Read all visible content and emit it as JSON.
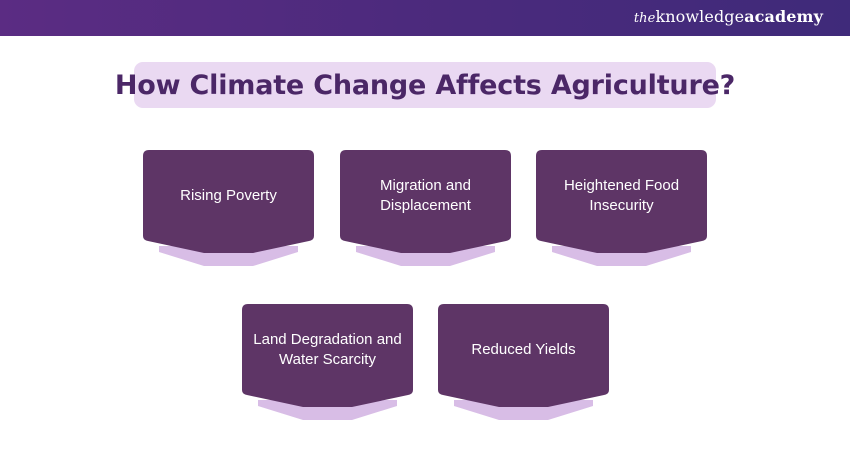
{
  "header": {
    "logo_the": "the",
    "logo_knowledge": "knowledge",
    "logo_academy": "academy"
  },
  "title": "How Climate Change Affects Agriculture?",
  "colors": {
    "header_bg": "#4a2a7c",
    "title_bg": "#ead9f2",
    "title_text": "#4b2767",
    "card_fill": "#5e3566",
    "card_shadow": "#d8bde6"
  },
  "cards": [
    {
      "label": "Rising Poverty"
    },
    {
      "label": "Migration and Displacement"
    },
    {
      "label": "Heightened Food Insecurity"
    },
    {
      "label": "Land Degradation and Water Scarcity"
    },
    {
      "label": "Reduced Yields"
    }
  ]
}
